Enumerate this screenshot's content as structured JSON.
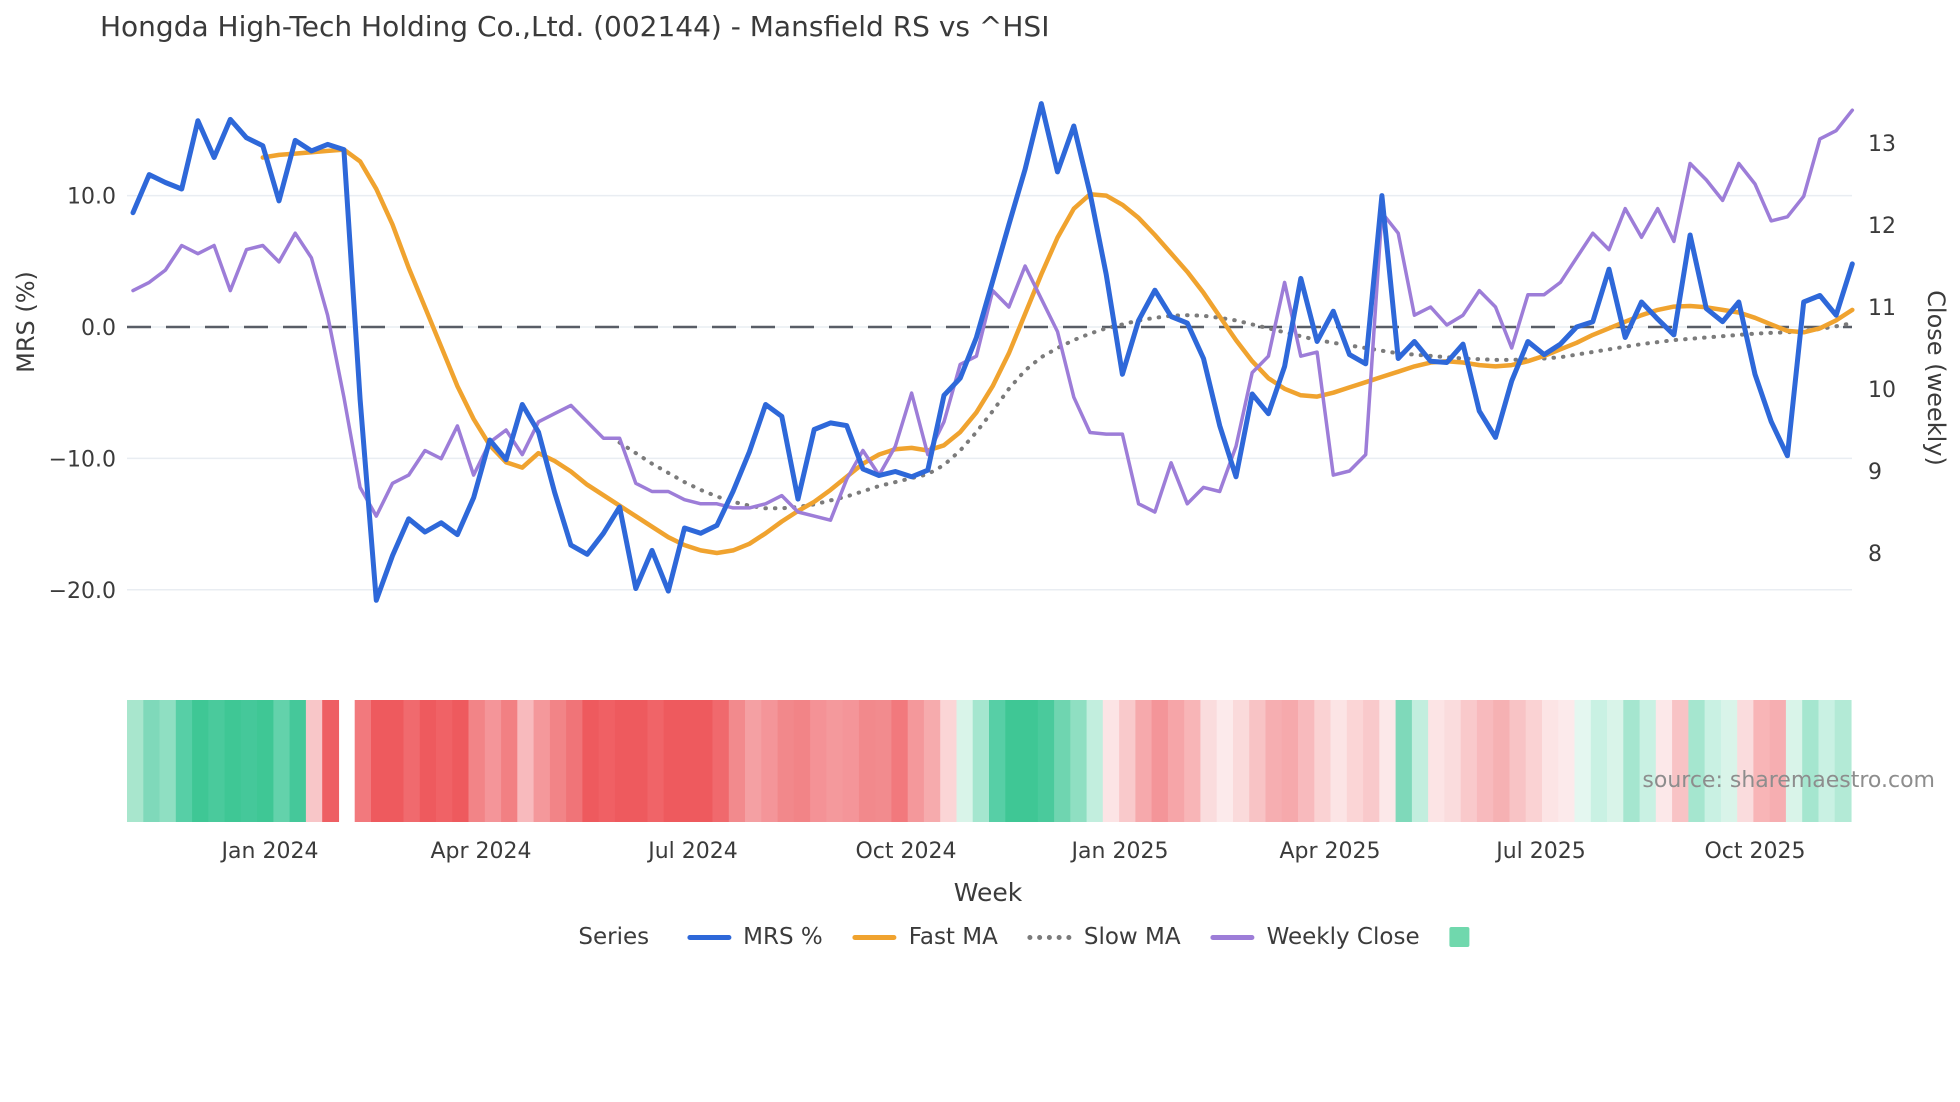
{
  "title": "Hongda High-Tech Holding Co.,Ltd. (002144) - Mansfield RS vs ^HSI",
  "source": "source: sharemaestro.com",
  "chart_data": {
    "type": "line",
    "x_axis": {
      "label": "Week",
      "ticks": [
        {
          "label": "Jan 2024",
          "week": 8.45
        },
        {
          "label": "Apr 2024",
          "week": 21.45
        },
        {
          "label": "Jul 2024",
          "week": 34.5
        },
        {
          "label": "Oct 2024",
          "week": 47.65
        },
        {
          "label": "Jan 2025",
          "week": 60.85
        },
        {
          "label": "Apr 2025",
          "week": 73.8
        },
        {
          "label": "Jul 2025",
          "week": 86.8
        },
        {
          "label": "Oct 2025",
          "week": 100.0
        }
      ]
    },
    "y_left": {
      "label": "MRS (%)",
      "ticks": [
        {
          "label": "10.0",
          "value": 10
        },
        {
          "label": "0.0",
          "value": 0
        },
        {
          "label": "−10.0",
          "value": -10
        },
        {
          "label": "−20.0",
          "value": -20
        }
      ],
      "zero_line_value": 0
    },
    "y_right": {
      "label": "Close (weekly)",
      "ticks": [
        {
          "label": "13",
          "value": 13
        },
        {
          "label": "12",
          "value": 12
        },
        {
          "label": "11",
          "value": 11
        },
        {
          "label": "10",
          "value": 10
        },
        {
          "label": "9",
          "value": 9
        },
        {
          "label": "8",
          "value": 8
        }
      ]
    },
    "grid_color": "#e9edf2",
    "zero_line_color": "#585d66",
    "series": [
      {
        "name": "MRS %",
        "color": "#2e68d9",
        "axis": "left",
        "style": "solid",
        "width": 5,
        "values": [
          8.7,
          11.6,
          11.0,
          10.5,
          15.7,
          12.9,
          15.8,
          14.4,
          13.8,
          9.6,
          14.2,
          13.4,
          13.9,
          13.5,
          -5.5,
          -20.8,
          -17.4,
          -14.6,
          -15.6,
          -14.9,
          -15.8,
          -13.0,
          -8.6,
          -10.1,
          -5.9,
          -8.0,
          -12.6,
          -16.6,
          -17.3,
          -15.7,
          -13.7,
          -19.9,
          -17.0,
          -20.1,
          -15.3,
          -15.7,
          -15.1,
          -12.5,
          -9.5,
          -5.9,
          -6.8,
          -13.1,
          -7.8,
          -7.3,
          -7.5,
          -10.8,
          -11.3,
          -11.0,
          -11.4,
          -10.9,
          -5.2,
          -3.9,
          -0.8,
          3.5,
          7.8,
          12.0,
          17.0,
          11.8,
          15.3,
          10.2,
          4.0,
          -3.6,
          0.5,
          2.8,
          0.8,
          0.3,
          -2.4,
          -7.5,
          -11.4,
          -5.1,
          -6.6,
          -3.0,
          3.7,
          -1.1,
          1.2,
          -2.1,
          -2.8,
          10.0,
          -2.4,
          -1.1,
          -2.6,
          -2.7,
          -1.3,
          -6.4,
          -8.4,
          -4.1,
          -1.1,
          -2.1,
          -1.3,
          0.0,
          0.4,
          4.4,
          -0.8,
          1.9,
          0.6,
          -0.6,
          7.0,
          1.4,
          0.4,
          1.9,
          -3.6,
          -7.2,
          -9.8,
          1.9,
          2.4,
          0.9,
          4.8
        ]
      },
      {
        "name": "Fast MA",
        "color": "#f0a32f",
        "axis": "left",
        "style": "solid",
        "width": 4.5,
        "values": [
          null,
          null,
          null,
          null,
          null,
          null,
          null,
          null,
          12.9,
          13.1,
          13.2,
          13.3,
          13.4,
          13.5,
          12.6,
          10.5,
          7.8,
          4.5,
          1.5,
          -1.5,
          -4.5,
          -7.0,
          -9.0,
          -10.3,
          -10.7,
          -9.6,
          -10.2,
          -11.0,
          -12.0,
          -12.8,
          -13.6,
          -14.4,
          -15.2,
          -16.0,
          -16.6,
          -17.0,
          -17.2,
          -17.0,
          -16.5,
          -15.7,
          -14.8,
          -14.0,
          -13.3,
          -12.4,
          -11.4,
          -10.4,
          -9.7,
          -9.3,
          -9.2,
          -9.4,
          -9.0,
          -8.0,
          -6.5,
          -4.5,
          -2.0,
          1.0,
          4.0,
          6.8,
          9.0,
          10.1,
          10.0,
          9.3,
          8.3,
          7.0,
          5.6,
          4.2,
          2.6,
          0.8,
          -1.0,
          -2.6,
          -3.9,
          -4.7,
          -5.2,
          -5.3,
          -5.0,
          -4.6,
          -4.2,
          -3.8,
          -3.4,
          -3.0,
          -2.7,
          -2.6,
          -2.7,
          -2.9,
          -3.0,
          -2.9,
          -2.6,
          -2.2,
          -1.7,
          -1.2,
          -0.6,
          -0.1,
          0.4,
          0.9,
          1.3,
          1.55,
          1.6,
          1.5,
          1.3,
          1.1,
          0.7,
          0.2,
          -0.3,
          -0.4,
          -0.1,
          0.5,
          1.3
        ]
      },
      {
        "name": "Slow MA",
        "color": "#7b7b7b",
        "axis": "left",
        "style": "dotted",
        "width": 4,
        "values": [
          null,
          null,
          null,
          null,
          null,
          null,
          null,
          null,
          null,
          null,
          null,
          null,
          null,
          null,
          null,
          null,
          null,
          null,
          null,
          null,
          null,
          null,
          null,
          null,
          null,
          null,
          null,
          null,
          null,
          null,
          -8.8,
          -9.6,
          -10.4,
          -11.1,
          -11.8,
          -12.4,
          -12.9,
          -13.3,
          -13.6,
          -13.8,
          -13.8,
          -13.7,
          -13.5,
          -13.2,
          -12.9,
          -12.5,
          -12.1,
          -11.8,
          -11.5,
          -11.2,
          -10.5,
          -9.4,
          -8.0,
          -6.4,
          -4.7,
          -3.3,
          -2.3,
          -1.6,
          -1.0,
          -0.5,
          -0.1,
          0.2,
          0.5,
          0.7,
          0.85,
          0.9,
          0.85,
          0.7,
          0.5,
          0.2,
          -0.1,
          -0.4,
          -0.7,
          -1.0,
          -1.2,
          -1.4,
          -1.6,
          -1.8,
          -2.0,
          -2.1,
          -2.2,
          -2.3,
          -2.4,
          -2.45,
          -2.5,
          -2.5,
          -2.45,
          -2.4,
          -2.3,
          -2.1,
          -1.9,
          -1.7,
          -1.5,
          -1.3,
          -1.15,
          -1.0,
          -0.9,
          -0.8,
          -0.7,
          -0.6,
          -0.5,
          -0.45,
          -0.4,
          -0.3,
          -0.15,
          0.05,
          0.3
        ]
      },
      {
        "name": "Weekly Close",
        "color": "#9d7dd8",
        "axis": "right",
        "style": "solid",
        "width": 3.5,
        "values": [
          11.2,
          11.3,
          11.45,
          11.75,
          11.65,
          11.75,
          11.2,
          11.7,
          11.75,
          11.55,
          11.9,
          11.6,
          10.9,
          9.9,
          8.8,
          8.45,
          8.85,
          8.95,
          9.25,
          9.15,
          9.55,
          8.95,
          9.35,
          9.5,
          9.2,
          9.6,
          9.7,
          9.8,
          9.6,
          9.4,
          9.4,
          8.85,
          8.75,
          8.75,
          8.65,
          8.6,
          8.6,
          8.55,
          8.55,
          8.6,
          8.7,
          8.5,
          8.45,
          8.4,
          8.9,
          9.25,
          8.95,
          9.3,
          9.95,
          9.2,
          9.6,
          10.3,
          10.4,
          11.2,
          11.0,
          11.5,
          11.1,
          10.7,
          9.9,
          9.47,
          9.45,
          9.45,
          8.6,
          8.5,
          9.1,
          8.6,
          8.8,
          8.75,
          9.3,
          10.2,
          10.4,
          11.3,
          10.4,
          10.45,
          8.95,
          9.0,
          9.2,
          12.15,
          11.9,
          10.9,
          11.0,
          10.78,
          10.9,
          11.2,
          11.0,
          10.5,
          11.15,
          11.15,
          11.3,
          11.6,
          11.9,
          11.7,
          12.2,
          11.85,
          12.2,
          11.8,
          12.75,
          12.55,
          12.3,
          12.75,
          12.5,
          12.05,
          12.1,
          12.35,
          13.05,
          13.15,
          13.4
        ]
      }
    ],
    "heatmap_strip": {
      "colors": [
        "#a8e6cd",
        "#7fd9ba",
        "#8fdfc2",
        "#57cfa6",
        "#3fc795",
        "#4aca9c",
        "#3fc795",
        "#45c89a",
        "#3fc795",
        "#63d2ab",
        "#45c89a",
        "#f8c6c8",
        "#ee5f63",
        "#ffffff",
        "#f2797d",
        "#ee5a5e",
        "#ee5a5e",
        "#f06a6e",
        "#ee5a5e",
        "#f06266",
        "#ee5a5e",
        "#f28487",
        "#f49599",
        "#f28083",
        "#f8babd",
        "#f4989b",
        "#f28487",
        "#f07478",
        "#ee5a5e",
        "#f06064",
        "#ee5a5e",
        "#ee5a5e",
        "#f06468",
        "#ee5a5e",
        "#ee5a5e",
        "#ee5a5e",
        "#f0696d",
        "#f28a8d",
        "#f4a0a3",
        "#f49599",
        "#f2888b",
        "#f28487",
        "#f49296",
        "#f4999c",
        "#f49599",
        "#f2898c",
        "#f28b8e",
        "#f2797d",
        "#f4989b",
        "#f6abad",
        "#fbd5d6",
        "#d9f4e9",
        "#a5e6cf",
        "#57cfa6",
        "#3fc795",
        "#3fc795",
        "#4aca9c",
        "#6fd5b0",
        "#8fdfc2",
        "#c2eede",
        "#fce4e5",
        "#f9c9cb",
        "#f6a9ac",
        "#f49599",
        "#f6a5a8",
        "#f8b5b7",
        "#fadcdd",
        "#fceaeb",
        "#fadadb",
        "#f8c3c5",
        "#f6aeb1",
        "#f6a9ac",
        "#f8babd",
        "#fad2d3",
        "#fce4e5",
        "#fbd5d6",
        "#f9c9cb",
        "#fce8e9",
        "#7fd9ba",
        "#c2eede",
        "#fce4e5",
        "#fadcdd",
        "#f9c9cb",
        "#f8babd",
        "#f6b1b3",
        "#f8c3c5",
        "#fad2d3",
        "#fce4e5",
        "#fceaeb",
        "#e4f7f0",
        "#c9f1e3",
        "#d9f4e9",
        "#a5e6cf",
        "#c9f1e3",
        "#fce8e9",
        "#f8c3c5",
        "#a5e6cf",
        "#c9f1e3",
        "#d9f4e9",
        "#fadcdd",
        "#f8b5b7",
        "#f6aeb1",
        "#d9f4e9",
        "#a5e6cf",
        "#c9f1e3",
        "#b3ead6"
      ]
    },
    "legend": {
      "title": "Series",
      "swatch_color": "#70d8ad"
    }
  }
}
